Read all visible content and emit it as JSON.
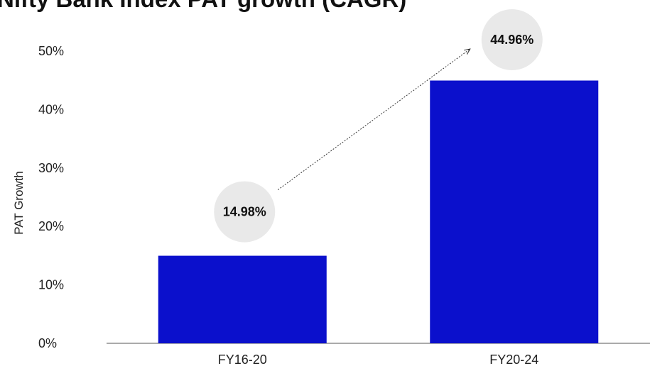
{
  "chart_data": {
    "type": "bar",
    "title": "Nifty Bank Index PAT growth (CAGR)",
    "ylabel": "PAT Growth",
    "xlabel": "",
    "categories": [
      "FY16-20",
      "FY20-24"
    ],
    "values": [
      14.98,
      44.96
    ],
    "data_labels": [
      "14.98%",
      "44.96%"
    ],
    "ylim": [
      0,
      50
    ],
    "yticks": [
      0,
      10,
      20,
      30,
      40,
      50
    ],
    "ytick_labels": [
      "0%",
      "10%",
      "20%",
      "30%",
      "40%",
      "50%"
    ],
    "grid": false,
    "bar_color": "#0b10cc",
    "label_bubble_color": "#e9e9e9",
    "annotation": "dotted arrow from first label to second label"
  }
}
